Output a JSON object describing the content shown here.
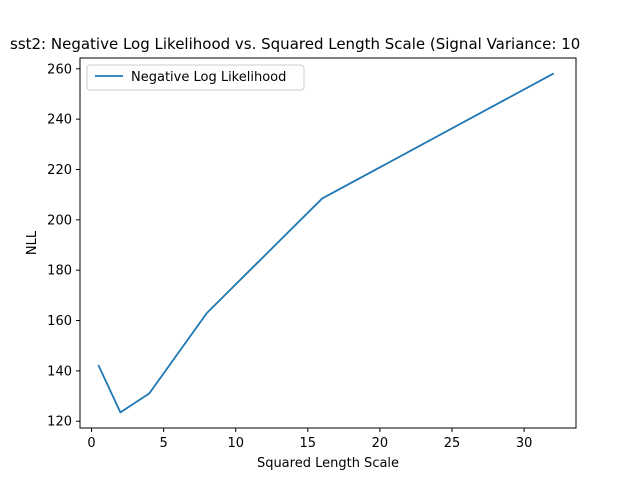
{
  "chart_data": {
    "type": "line",
    "title": "sst2: Negative Log Likelihood vs. Squared Length Scale (Signal Variance: 10",
    "xlabel": "Squared Length Scale",
    "ylabel": "NLL",
    "xlim": [
      -0.8,
      33.6
    ],
    "ylim": [
      117.3,
      264.3
    ],
    "xticks": [
      0,
      5,
      10,
      15,
      20,
      25,
      30
    ],
    "yticks": [
      120,
      140,
      160,
      180,
      200,
      220,
      240,
      260
    ],
    "x": [
      0.5,
      2,
      4,
      8,
      16,
      32
    ],
    "series": [
      {
        "name": "Negative Log Likelihood",
        "values": [
          142,
          123.5,
          131,
          163,
          208.5,
          258
        ],
        "color": "#1f77b4"
      }
    ],
    "grid": false,
    "legend_position": "upper-left"
  }
}
